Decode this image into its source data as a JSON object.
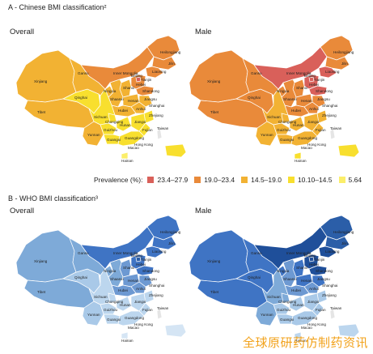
{
  "section_a": {
    "heading": "A - Chinese BMI classification²",
    "overall_label": "Overall",
    "male_label": "Male"
  },
  "legend": {
    "title": "Prevalence (%):",
    "items": [
      {
        "label": "23.4–27.9",
        "color": "#d9605a"
      },
      {
        "label": "19.0–23.4",
        "color": "#e98a3a"
      },
      {
        "label": "14.5–19.0",
        "color": "#f2b233"
      },
      {
        "label": "10.10–14.5",
        "color": "#f8df2e"
      },
      {
        "label": "5.64",
        "color": "#fbee6a"
      }
    ]
  },
  "section_b": {
    "heading": "B - WHO BMI classification³",
    "overall_label": "Overall",
    "male_label": "Male"
  },
  "palettes": {
    "chinese_overall": {
      "north": "#e98a3a",
      "heilongjiang": "#e98a3a",
      "jilin": "#e98a3a",
      "liaoning": "#e98a3a",
      "inner_mongolia": "#e98a3a",
      "beijing": "#d9605a",
      "hebei": "#e98a3a",
      "shanxi": "#f2b233",
      "shandong": "#e98a3a",
      "xinjiang": "#f2b233",
      "tibet": "#f2b233",
      "qinghai": "#f8df2e",
      "gansu": "#f2b233",
      "ningxia": "#f2b233",
      "shaanxi": "#f2b233",
      "henan": "#f2b233",
      "sichuan": "#f8df2e",
      "chongqing": "#f8df2e",
      "hubei": "#f2b233",
      "anhui": "#f2b233",
      "jiangsu": "#f2b233",
      "yunnan": "#f2b233",
      "guizhou": "#f8df2e",
      "hunan": "#f8df2e",
      "jiangxi": "#f8df2e",
      "zhejiang": "#f8df2e",
      "fujian": "#f8df2e",
      "guangxi": "#f8df2e",
      "guangdong": "#f8df2e",
      "hainan": "#fbee6a",
      "taiwan": "#e5e5e5",
      "islands": "#f8df2e"
    },
    "chinese_male": {
      "heilongjiang": "#e98a3a",
      "jilin": "#e98a3a",
      "liaoning": "#d9605a",
      "inner_mongolia": "#d9605a",
      "beijing": "#d9605a",
      "hebei": "#d9605a",
      "shanxi": "#e98a3a",
      "shandong": "#d9605a",
      "xinjiang": "#e98a3a",
      "tibet": "#e98a3a",
      "qinghai": "#e98a3a",
      "gansu": "#e98a3a",
      "ningxia": "#e98a3a",
      "shaanxi": "#e98a3a",
      "henan": "#e98a3a",
      "sichuan": "#f2b233",
      "chongqing": "#f2b233",
      "hubei": "#e98a3a",
      "anhui": "#e98a3a",
      "jiangsu": "#e98a3a",
      "yunnan": "#f2b233",
      "guizhou": "#f2b233",
      "hunan": "#f2b233",
      "jiangxi": "#f2b233",
      "zhejiang": "#f2b233",
      "fujian": "#f2b233",
      "guangxi": "#f2b233",
      "guangdong": "#f2b233",
      "hainan": "#f8df2e",
      "taiwan": "#e5e5e5",
      "islands": "#f8df2e"
    },
    "who_overall": {
      "heilongjiang": "#3f74c4",
      "jilin": "#3f74c4",
      "liaoning": "#3f74c4",
      "inner_mongolia": "#3f74c4",
      "beijing": "#2b5ea8",
      "hebei": "#3f74c4",
      "shanxi": "#6d99d2",
      "shandong": "#3f74c4",
      "xinjiang": "#7eaad8",
      "tibet": "#7eaad8",
      "qinghai": "#a9c9e8",
      "gansu": "#7eaad8",
      "ningxia": "#7eaad8",
      "shaanxi": "#7eaad8",
      "henan": "#6d99d2",
      "sichuan": "#bcd6ee",
      "chongqing": "#bcd6ee",
      "hubei": "#6d99d2",
      "anhui": "#6d99d2",
      "jiangsu": "#6d99d2",
      "yunnan": "#a9c9e8",
      "guizhou": "#bcd6ee",
      "hunan": "#bcd6ee",
      "jiangxi": "#bcd6ee",
      "zhejiang": "#bcd6ee",
      "fujian": "#bcd6ee",
      "guangxi": "#bcd6ee",
      "guangdong": "#bcd6ee",
      "hainan": "#d5e5f4",
      "taiwan": "#e5e5e5",
      "islands": "#d5e5f4"
    },
    "who_male": {
      "heilongjiang": "#2b5ea8",
      "jilin": "#2b5ea8",
      "liaoning": "#1f4f9a",
      "inner_mongolia": "#1f4f9a",
      "beijing": "#1f4f9a",
      "hebei": "#1f4f9a",
      "shanxi": "#3f74c4",
      "shandong": "#1f4f9a",
      "xinjiang": "#3f74c4",
      "tibet": "#3f74c4",
      "qinghai": "#3f74c4",
      "gansu": "#3f74c4",
      "ningxia": "#3f74c4",
      "shaanxi": "#6d99d2",
      "henan": "#3f74c4",
      "sichuan": "#7eaad8",
      "chongqing": "#7eaad8",
      "hubei": "#6d99d2",
      "anhui": "#6d99d2",
      "jiangsu": "#3f74c4",
      "yunnan": "#7eaad8",
      "guizhou": "#a9c9e8",
      "hunan": "#a9c9e8",
      "jiangxi": "#a9c9e8",
      "zhejiang": "#a9c9e8",
      "fujian": "#a9c9e8",
      "guangxi": "#a9c9e8",
      "guangdong": "#a9c9e8",
      "hainan": "#bcd6ee",
      "taiwan": "#e5e5e5",
      "islands": "#bcd6ee"
    }
  },
  "province_labels": {
    "xinjiang": "Xinjiang",
    "tibet": "Tibet",
    "qinghai": "Qinghai",
    "gansu": "Gansu",
    "inner_mongolia": "Inner Mongolia",
    "heilongjiang": "Heilongjiang",
    "jilin": "Jilin",
    "liaoning": "Liaoning",
    "beijing": "Beijing",
    "tianjin": "Tianjin",
    "hebei": "Hebei",
    "shanxi": "Shanxi",
    "shandong": "Shandong",
    "ningxia": "Ningxia",
    "shaanxi": "Shaanxi",
    "henan": "Henan",
    "jiangsu": "Jiangsu",
    "anhui": "Anhui",
    "shanghai": "Shanghai",
    "hubei": "Hubei",
    "sichuan": "Sichuan",
    "chongqing": "Chongqing",
    "zhejiang": "Zhejiang",
    "hunan": "Hunan",
    "jiangxi": "Jiangxi",
    "guizhou": "Guizhou",
    "yunnan": "Yunnan",
    "fujian": "Fujian",
    "taiwan": "Taiwan",
    "guangxi": "Guangxi",
    "guangdong": "Guangdong",
    "hongkong": "Hong Kong",
    "macao": "Macao",
    "hainan": "Hainan"
  },
  "watermark": "全球原研药仿制药资讯"
}
